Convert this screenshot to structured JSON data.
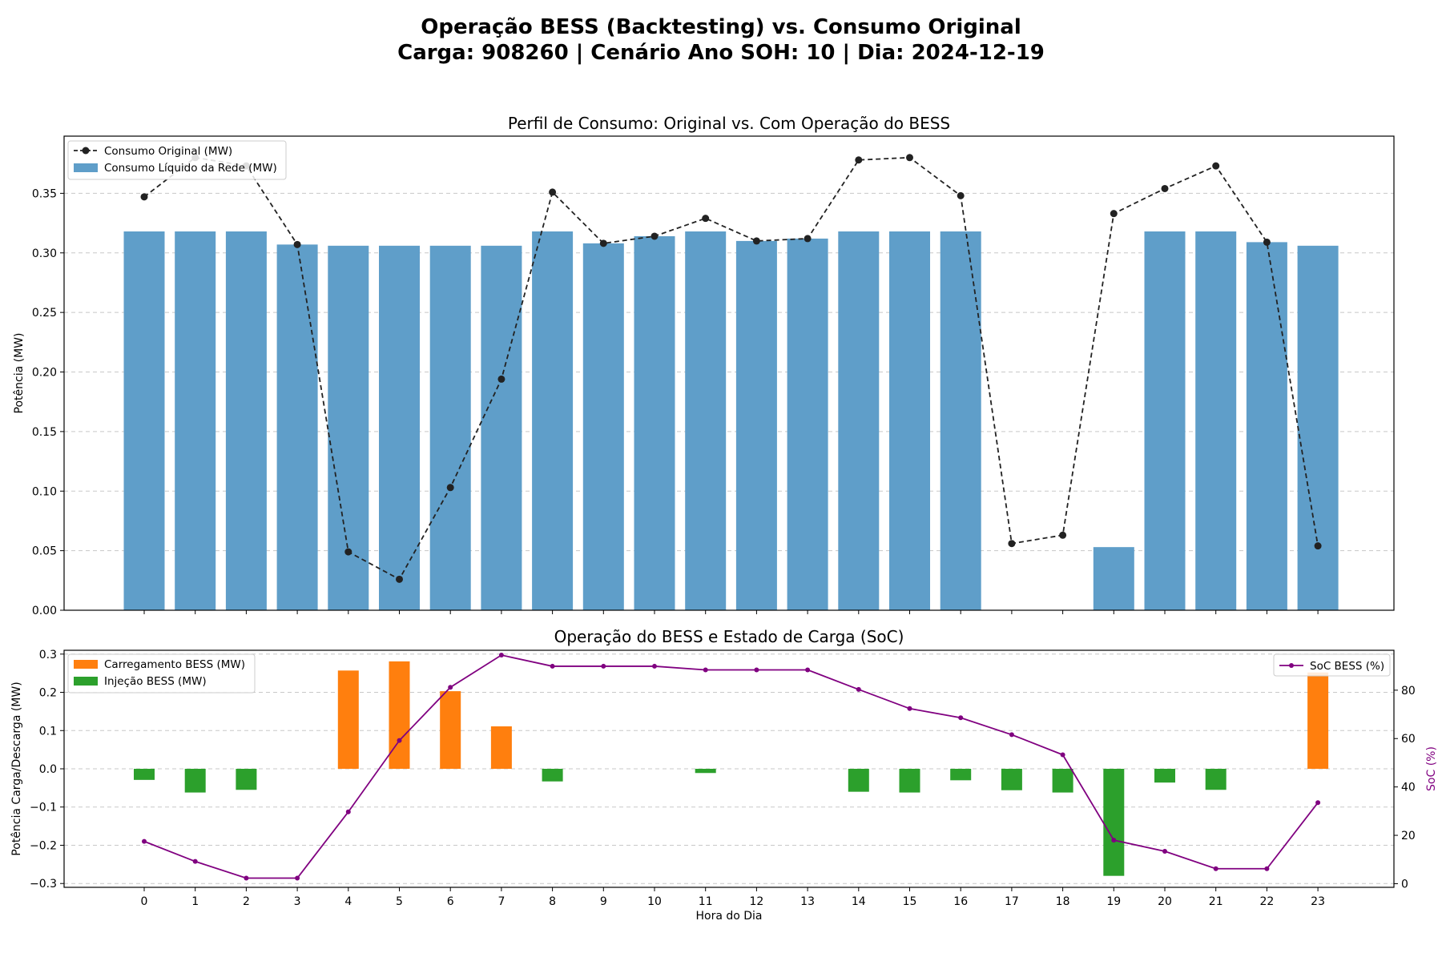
{
  "figure": {
    "title_line1": "Operação BESS (Backtesting) vs. Consumo Original",
    "title_line2": "Carga: 908260 | Cenário Ano SOH: 10 | Dia: 2024-12-19"
  },
  "colors": {
    "bar_net": "#5f9ec9",
    "line_original": "#222222",
    "charge": "#ff7f0e",
    "discharge": "#2ca02c",
    "soc": "#800080",
    "grid": "#c8c8c8"
  },
  "chart_data": [
    {
      "type": "bar",
      "title": "Perfil de Consumo: Original vs. Com Operação do BESS",
      "xlabel": "",
      "ylabel": "Potência (MW)",
      "categories": [
        "0",
        "1",
        "2",
        "3",
        "4",
        "5",
        "6",
        "7",
        "8",
        "9",
        "10",
        "11",
        "12",
        "13",
        "14",
        "15",
        "16",
        "17",
        "18",
        "19",
        "20",
        "21",
        "22",
        "23"
      ],
      "ylim": [
        0,
        0.398
      ],
      "yticks": [
        "0.00",
        "0.05",
        "0.10",
        "0.15",
        "0.20",
        "0.25",
        "0.30",
        "0.35"
      ],
      "grid": true,
      "legend_position": "top-left",
      "series": [
        {
          "name": "Consumo Original (MW)",
          "kind": "line",
          "style": "dashed-with-markers",
          "values": [
            0.347,
            0.38,
            0.373,
            0.307,
            0.049,
            0.026,
            0.103,
            0.194,
            0.351,
            0.308,
            0.314,
            0.329,
            0.31,
            0.312,
            0.378,
            0.38,
            0.348,
            0.056,
            0.063,
            0.333,
            0.354,
            0.373,
            0.309,
            0.054
          ]
        },
        {
          "name": "Consumo Líquido da Rede (MW)",
          "kind": "bar",
          "values": [
            0.318,
            0.318,
            0.318,
            0.307,
            0.306,
            0.306,
            0.306,
            0.306,
            0.318,
            0.308,
            0.314,
            0.318,
            0.31,
            0.312,
            0.318,
            0.318,
            0.318,
            0.0,
            0.0,
            0.053,
            0.318,
            0.318,
            0.309,
            0.306
          ]
        }
      ]
    },
    {
      "type": "bar",
      "title": "Operação do BESS e Estado de Carga (SoC)",
      "xlabel": "Hora do Dia",
      "ylabel": "Potência Carga/Descarga (MW)",
      "ylabel_right": "SoC (%)",
      "categories": [
        "0",
        "1",
        "2",
        "3",
        "4",
        "5",
        "6",
        "7",
        "8",
        "9",
        "10",
        "11",
        "12",
        "13",
        "14",
        "15",
        "16",
        "17",
        "18",
        "19",
        "20",
        "21",
        "22",
        "23"
      ],
      "ylim": [
        -0.31,
        0.31
      ],
      "ylim_right": [
        -1.5,
        96.5
      ],
      "yticks": [
        "0.3",
        "0.2",
        "0.1",
        "0.0",
        "−0.1",
        "−0.2",
        "−0.3"
      ],
      "yticks_right": [
        "0",
        "20",
        "40",
        "60",
        "80"
      ],
      "grid": true,
      "legend_position": "top-left",
      "legend_right_position": "top-right",
      "series": [
        {
          "name": "Carregamento BESS (MW)",
          "kind": "bar",
          "values": [
            0,
            0,
            0,
            0,
            0.257,
            0.281,
            0.203,
            0.111,
            0,
            0,
            0,
            0,
            0,
            0,
            0,
            0,
            0,
            0,
            0,
            0,
            0,
            0,
            0,
            0.252
          ]
        },
        {
          "name": "Injeção BESS (MW)",
          "kind": "bar",
          "values": [
            -0.029,
            -0.062,
            -0.055,
            0,
            0,
            0,
            0,
            0,
            -0.033,
            0,
            0,
            -0.011,
            0,
            0,
            -0.06,
            -0.062,
            -0.03,
            -0.056,
            -0.062,
            -0.28,
            -0.036,
            -0.055,
            0,
            0
          ]
        },
        {
          "name": "SoC BESS (%)",
          "kind": "line",
          "axis": "right",
          "values": [
            17.5,
            9.2,
            2.3,
            2.3,
            29.7,
            59.2,
            81.2,
            94.5,
            89.9,
            89.9,
            89.9,
            88.4,
            88.4,
            88.4,
            80.3,
            72.4,
            68.6,
            61.6,
            53.3,
            18.0,
            13.4,
            6.2,
            6.2,
            33.5
          ]
        }
      ]
    }
  ]
}
